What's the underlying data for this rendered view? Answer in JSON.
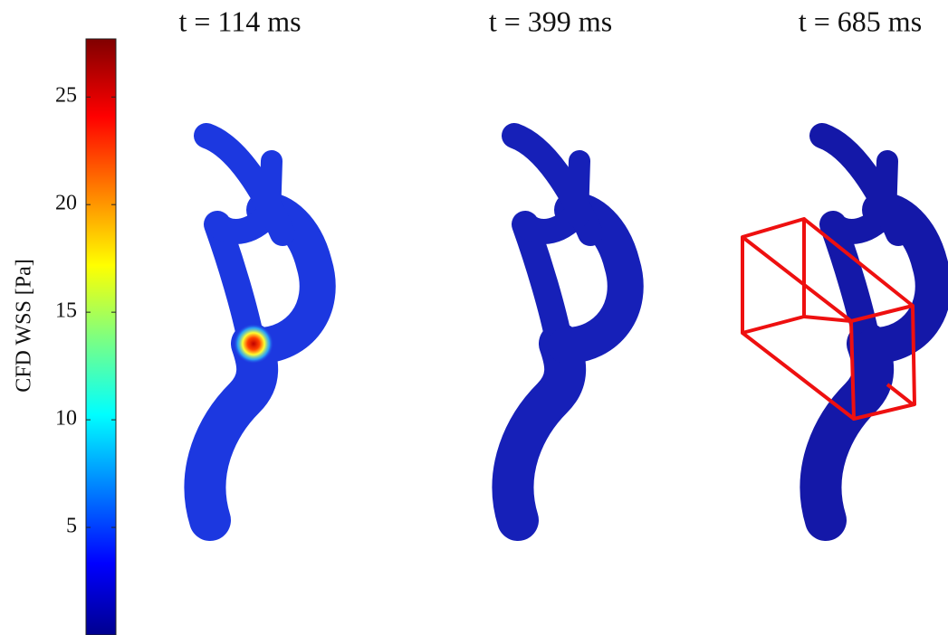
{
  "colorbar": {
    "label": "CFD WSS [Pa]",
    "lim": [
      0,
      27.7
    ],
    "ticks": [
      5,
      10,
      15,
      20,
      25
    ]
  },
  "panels": [
    {
      "title": "t = 114 ms"
    },
    {
      "title": "t = 399 ms"
    },
    {
      "title": "t = 685 ms"
    }
  ]
}
